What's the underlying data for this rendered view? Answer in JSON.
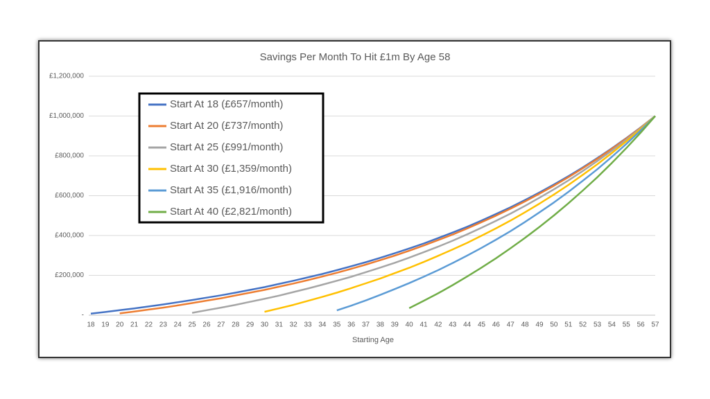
{
  "chart_data": {
    "type": "line",
    "title": "Savings Per Month To Hit £1m By Age 58",
    "x_label": "Starting Age",
    "categories": [
      "18",
      "19",
      "20",
      "21",
      "22",
      "23",
      "24",
      "25",
      "26",
      "27",
      "28",
      "29",
      "30",
      "31",
      "32",
      "33",
      "34",
      "35",
      "36",
      "37",
      "38",
      "39",
      "40",
      "41",
      "42",
      "43",
      "44",
      "45",
      "46",
      "47",
      "48",
      "49",
      "50",
      "51",
      "52",
      "53",
      "54",
      "55",
      "56",
      "57"
    ],
    "ylim": [
      0,
      1200000
    ],
    "yticks": [
      {
        "value": 0,
        "label": "-"
      },
      {
        "value": 200000,
        "label": "£200,000"
      },
      {
        "value": 400000,
        "label": "£400,000"
      },
      {
        "value": 600000,
        "label": "£600,000"
      },
      {
        "value": 800000,
        "label": "£800,000"
      },
      {
        "value": 1000000,
        "label": "£1,000,000"
      },
      {
        "value": 1200000,
        "label": "£1,200,000"
      }
    ],
    "grid": true,
    "legend": "upper left",
    "series": [
      {
        "name": "Start At 18 (£657/month)",
        "color": "#4472c4",
        "values": [
          8000,
          16000,
          25000,
          34000,
          44000,
          54000,
          65000,
          76000,
          88000,
          100000,
          113000,
          127000,
          141000,
          157000,
          173000,
          190000,
          207000,
          226000,
          246000,
          266000,
          288000,
          311000,
          335000,
          360000,
          387000,
          415000,
          444000,
          475000,
          508000,
          542000,
          578000,
          616000,
          656000,
          698000,
          742000,
          789000,
          838000,
          889000,
          943000,
          1000000
        ]
      },
      {
        "name": "Start At 20 (£737/month)",
        "color": "#ed7d31",
        "values": [
          null,
          null,
          9000,
          18000,
          28000,
          38000,
          49000,
          61000,
          73000,
          85000,
          99000,
          113000,
          127000,
          143000,
          159000,
          176000,
          194000,
          213000,
          233000,
          254000,
          276000,
          299000,
          324000,
          350000,
          377000,
          405000,
          435000,
          467000,
          500000,
          535000,
          571000,
          610000,
          650000,
          693000,
          738000,
          785000,
          835000,
          887000,
          942000,
          1000000
        ]
      },
      {
        "name": "Start At 25 (£991/month)",
        "color": "#a5a5a5",
        "values": [
          null,
          null,
          null,
          null,
          null,
          null,
          null,
          12000,
          25000,
          38000,
          52000,
          67000,
          82000,
          98000,
          116000,
          134000,
          153000,
          173000,
          193000,
          216000,
          239000,
          263000,
          289000,
          316000,
          344000,
          374000,
          406000,
          439000,
          474000,
          510000,
          549000,
          590000,
          632000,
          677000,
          724000,
          774000,
          826000,
          881000,
          939000,
          1000000
        ]
      },
      {
        "name": "Start At 30 (£1,359/month)",
        "color": "#ffc000",
        "values": [
          null,
          null,
          null,
          null,
          null,
          null,
          null,
          null,
          null,
          null,
          null,
          null,
          17000,
          34000,
          52000,
          72000,
          92000,
          113000,
          136000,
          160000,
          184000,
          211000,
          238000,
          267000,
          298000,
          330000,
          363000,
          399000,
          436000,
          475000,
          517000,
          560000,
          606000,
          654000,
          705000,
          758000,
          814000,
          873000,
          935000,
          1000000
        ]
      },
      {
        "name": "Start At 35 (£1,916/month)",
        "color": "#5b9bd5",
        "values": [
          null,
          null,
          null,
          null,
          null,
          null,
          null,
          null,
          null,
          null,
          null,
          null,
          null,
          null,
          null,
          null,
          null,
          24000,
          48000,
          74000,
          102000,
          131000,
          161000,
          193000,
          226000,
          262000,
          299000,
          338000,
          379000,
          422000,
          468000,
          516000,
          566000,
          619000,
          675000,
          733000,
          795000,
          860000,
          928000,
          1000000
        ]
      },
      {
        "name": "Start At 40 (£2,821/month)",
        "color": "#70ad47",
        "values": [
          null,
          null,
          null,
          null,
          null,
          null,
          null,
          null,
          null,
          null,
          null,
          null,
          null,
          null,
          null,
          null,
          null,
          null,
          null,
          null,
          null,
          null,
          35000,
          72000,
          110000,
          151000,
          194000,
          239000,
          286000,
          336000,
          388000,
          443000,
          501000,
          562000,
          626000,
          693000,
          764000,
          839000,
          917000,
          1000000
        ]
      }
    ]
  }
}
